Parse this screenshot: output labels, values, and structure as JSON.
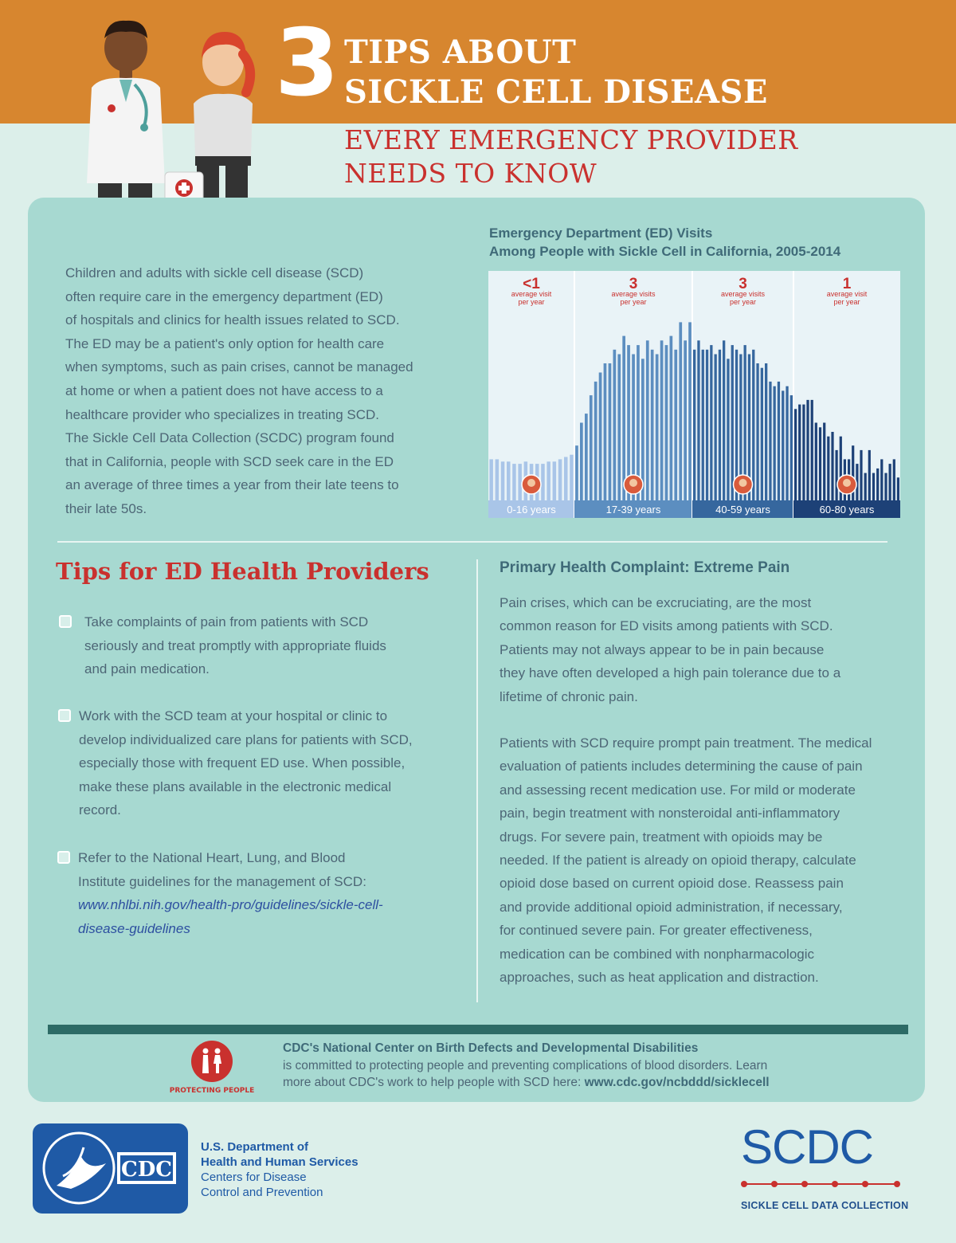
{
  "header": {
    "number": "3",
    "title_line1": "TIPS ABOUT",
    "title_line2": "SICKLE CELL DISEASE",
    "subtitle_line1": "EVERY EMERGENCY PROVIDER",
    "subtitle_line2": "NEEDS TO KNOW"
  },
  "intro": {
    "lines": [
      "Children and adults with sickle cell disease (SCD)",
      "often require care in the emergency department (ED)",
      "of hospitals and clinics for health issues related to SCD.",
      "The ED may be a patient's only option for health care",
      "when symptoms, such as pain crises, cannot be managed",
      "at home or when a patient does not have access to a",
      "healthcare provider who specializes in treating SCD.",
      "The Sickle Cell Data Collection (SCDC) program found",
      "that in California, people with SCD seek care in the ED",
      "an average of three times a year from their late teens to",
      "their late 50s."
    ]
  },
  "chart_data": {
    "type": "bar",
    "title_line1": "Emergency Department (ED) Visits",
    "title_line2": "Among People with Sickle Cell in California, 2005-2014",
    "groups": [
      {
        "label": "0-16 years",
        "avg": "<1",
        "avg_text_line1": "average visit",
        "avg_text_line2": "per year",
        "color": "#a9c5e8",
        "values": [
          0.9,
          0.9,
          0.85,
          0.85,
          0.8,
          0.8,
          0.85,
          0.8,
          0.8,
          0.8,
          0.85,
          0.85,
          0.9,
          0.95,
          1.0
        ]
      },
      {
        "label": "17-39 years",
        "avg": "3",
        "avg_text_line1": "average visits",
        "avg_text_line2": "per year",
        "color": "#5c8ec0",
        "values": [
          1.2,
          1.7,
          1.9,
          2.3,
          2.6,
          2.8,
          3.0,
          3.0,
          3.3,
          3.2,
          3.6,
          3.4,
          3.2,
          3.4,
          3.1,
          3.5,
          3.3,
          3.2,
          3.5,
          3.4,
          3.6,
          3.3,
          3.9,
          3.5,
          3.9
        ]
      },
      {
        "label": "40-59 years",
        "avg": "3",
        "avg_text_line1": "average visits",
        "avg_text_line2": "per year",
        "color": "#36679e",
        "values": [
          3.3,
          3.5,
          3.3,
          3.3,
          3.4,
          3.2,
          3.3,
          3.5,
          3.1,
          3.4,
          3.3,
          3.2,
          3.4,
          3.2,
          3.3,
          3.0,
          2.9,
          3.0,
          2.6,
          2.5,
          2.6,
          2.4,
          2.5,
          2.3
        ]
      },
      {
        "label": "60-80 years",
        "avg": "1",
        "avg_text_line1": "average visit",
        "avg_text_line2": "per year",
        "color": "#1d4177",
        "values": [
          2.0,
          2.1,
          2.1,
          2.2,
          2.2,
          1.7,
          1.6,
          1.7,
          1.4,
          1.5,
          1.1,
          1.4,
          0.9,
          0.9,
          1.2,
          0.8,
          1.1,
          0.6,
          1.1,
          0.6,
          0.7,
          0.9,
          0.6,
          0.8,
          0.9,
          0.5
        ]
      }
    ],
    "ylim": [
      0,
      4.5
    ]
  },
  "tips": {
    "heading": "Tips for ED Health Providers",
    "items": [
      {
        "lines": [
          "Take complaints of pain from patients with SCD",
          "seriously and treat promptly with appropriate fluids",
          "and pain medication."
        ]
      },
      {
        "lines": [
          "Work with the SCD team at your hospital or clinic to",
          "develop individualized care plans for patients with SCD,",
          "especially those with frequent ED use. When possible,",
          "make these plans available in the electronic medical",
          "record."
        ]
      },
      {
        "lines": [
          "Refer to the National Heart, Lung, and Blood",
          "Institute guidelines for the management of SCD:"
        ],
        "link_lines": [
          "www.nhlbi.nih.gov/health-pro/guidelines/sickle-cell-",
          "disease-guidelines"
        ]
      }
    ]
  },
  "complaint": {
    "heading": "Primary Health Complaint: Extreme Pain",
    "para1": [
      "Pain crises, which can be excruciating, are the most",
      "common reason for ED visits among patients with SCD.",
      "Patients may not always appear to be in pain because",
      "they have often developed a high pain tolerance due to a",
      "lifetime of chronic pain."
    ],
    "para2": [
      "Patients with SCD require prompt pain treatment. The medical",
      "evaluation of patients includes determining the cause of pain",
      "and assessing recent medication use. For mild or moderate",
      "pain, begin treatment with nonsteroidal anti-inflammatory",
      "drugs. For severe pain, treatment with opioids may be",
      "needed. If the patient is already on opioid therapy, calculate",
      "opioid dose based on current opioid dose. Reassess pain",
      "and provide additional opioid administration, if necessary,",
      "for continued severe pain. For greater effectiveness,",
      "medication can be combined with nonpharmacologic",
      "approaches, such as heat application and distraction."
    ]
  },
  "footer": {
    "protecting": "PROTECTING PEOPLE",
    "center_name": "CDC's National Center on Birth Defects and Developmental Disabilities",
    "line2": "is committed to protecting people and preventing complications of blood disorders. Learn",
    "line3_prefix": "more about CDC's work to help people with SCD here: ",
    "url": "www.cdc.gov/ncbddd/sicklecell"
  },
  "logos": {
    "cdc": "CDC",
    "dept_line1": "U.S. Department of",
    "dept_line2": "Health and Human Services",
    "dept_line3": "Centers for Disease",
    "dept_line4": "Control and Prevention",
    "scdc": "SCDC",
    "scdc_sub": "SICKLE CELL DATA COLLECTION"
  },
  "colors": {
    "orange": "#d7862f",
    "red": "#c9312e",
    "teal_panel": "#a7d9d1",
    "blue": "#1f5aa6"
  }
}
